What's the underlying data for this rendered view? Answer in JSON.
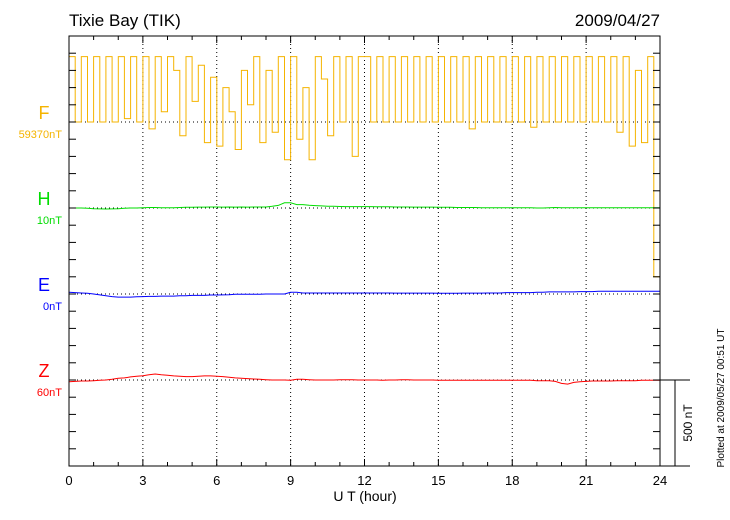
{
  "chart_data": {
    "type": "line",
    "title": "Tixie Bay (TIK)",
    "date": "2009/04/27",
    "xlabel": "U T (hour)",
    "xlim": [
      0,
      24
    ],
    "xticks": [
      "0",
      "3",
      "6",
      "9",
      "12",
      "15",
      "18",
      "21",
      "24"
    ],
    "scale_label": "500 nT",
    "footer": "Plotted at 2009/05/27 00:51 UT",
    "x_step_hours": 0.25,
    "series": [
      {
        "name": "F",
        "baseline_label": "59370nT",
        "color": "#f5b400",
        "values": [
          380,
          0,
          380,
          0,
          380,
          0,
          380,
          0,
          380,
          20,
          380,
          0,
          380,
          -40,
          380,
          60,
          380,
          300,
          -80,
          380,
          120,
          330,
          -120,
          260,
          -140,
          200,
          60,
          -160,
          300,
          100,
          380,
          -120,
          300,
          -60,
          380,
          -220,
          380,
          -100,
          200,
          -220,
          380,
          250,
          -80,
          380,
          0,
          380,
          -200,
          380,
          380,
          0,
          380,
          0,
          380,
          0,
          380,
          0,
          380,
          0,
          380,
          0,
          380,
          0,
          380,
          0,
          380,
          -40,
          380,
          0,
          380,
          0,
          380,
          0,
          380,
          0,
          380,
          -30,
          380,
          0,
          380,
          0,
          380,
          0,
          380,
          0,
          380,
          0,
          380,
          0,
          380,
          -60,
          380,
          -140,
          300,
          -120,
          380,
          -900,
          380
        ]
      },
      {
        "name": "H",
        "baseline_label": "10nT",
        "color": "#00dd00",
        "values": [
          0,
          0,
          0,
          -2,
          -4,
          -5,
          -6,
          -5,
          -4,
          -2,
          0,
          0,
          2,
          3,
          3,
          2,
          2,
          2,
          3,
          4,
          4,
          5,
          5,
          6,
          6,
          5,
          6,
          5,
          6,
          5,
          6,
          6,
          6,
          10,
          15,
          30,
          30,
          20,
          20,
          16,
          14,
          12,
          10,
          10,
          9,
          8,
          8,
          8,
          8,
          8,
          7,
          7,
          7,
          6,
          6,
          6,
          5,
          5,
          5,
          5,
          4,
          4,
          4,
          3,
          3,
          3,
          3,
          2,
          2,
          2,
          2,
          2,
          2,
          1,
          1,
          1,
          0,
          0,
          2,
          3,
          2,
          2,
          2,
          2,
          2,
          2,
          2,
          2,
          2,
          2,
          2,
          2,
          2,
          2,
          1,
          1,
          1
        ]
      },
      {
        "name": "E",
        "baseline_label": "0nT",
        "color": "#0000ff",
        "values": [
          10,
          8,
          6,
          4,
          0,
          -5,
          -10,
          -15,
          -18,
          -18,
          -18,
          -16,
          -15,
          -14,
          -14,
          -12,
          -12,
          -12,
          -10,
          -10,
          -8,
          -8,
          -8,
          -6,
          -6,
          -5,
          -4,
          -2,
          -2,
          -2,
          -2,
          -2,
          0,
          0,
          0,
          0,
          10,
          10,
          6,
          6,
          6,
          6,
          6,
          6,
          6,
          6,
          6,
          6,
          6,
          6,
          6,
          6,
          6,
          5,
          5,
          5,
          5,
          5,
          5,
          5,
          4,
          4,
          4,
          4,
          5,
          5,
          5,
          5,
          6,
          6,
          6,
          8,
          8,
          8,
          8,
          8,
          10,
          10,
          12,
          12,
          12,
          12,
          12,
          14,
          14,
          14,
          16,
          16,
          16,
          16,
          16,
          16,
          16,
          16,
          16,
          16,
          16
        ]
      },
      {
        "name": "Z",
        "baseline_label": "60nT",
        "color": "#ff0000",
        "values": [
          -10,
          -8,
          -6,
          -6,
          -4,
          -2,
          0,
          4,
          10,
          12,
          18,
          22,
          25,
          30,
          35,
          30,
          28,
          24,
          22,
          20,
          20,
          22,
          24,
          24,
          22,
          20,
          16,
          12,
          10,
          8,
          6,
          4,
          2,
          0,
          0,
          0,
          -2,
          4,
          4,
          2,
          0,
          0,
          0,
          0,
          2,
          2,
          2,
          0,
          0,
          0,
          0,
          -2,
          0,
          0,
          2,
          2,
          0,
          0,
          0,
          0,
          -2,
          -2,
          -2,
          -2,
          -2,
          -2,
          -2,
          -2,
          -2,
          -2,
          -2,
          -2,
          -2,
          -2,
          -2,
          -2,
          -4,
          -4,
          -4,
          -8,
          -20,
          -24,
          -14,
          -10,
          -8,
          -6,
          -6,
          -6,
          -6,
          -4,
          -4,
          -4,
          -4,
          -2,
          -2,
          -2,
          -2
        ]
      }
    ]
  }
}
